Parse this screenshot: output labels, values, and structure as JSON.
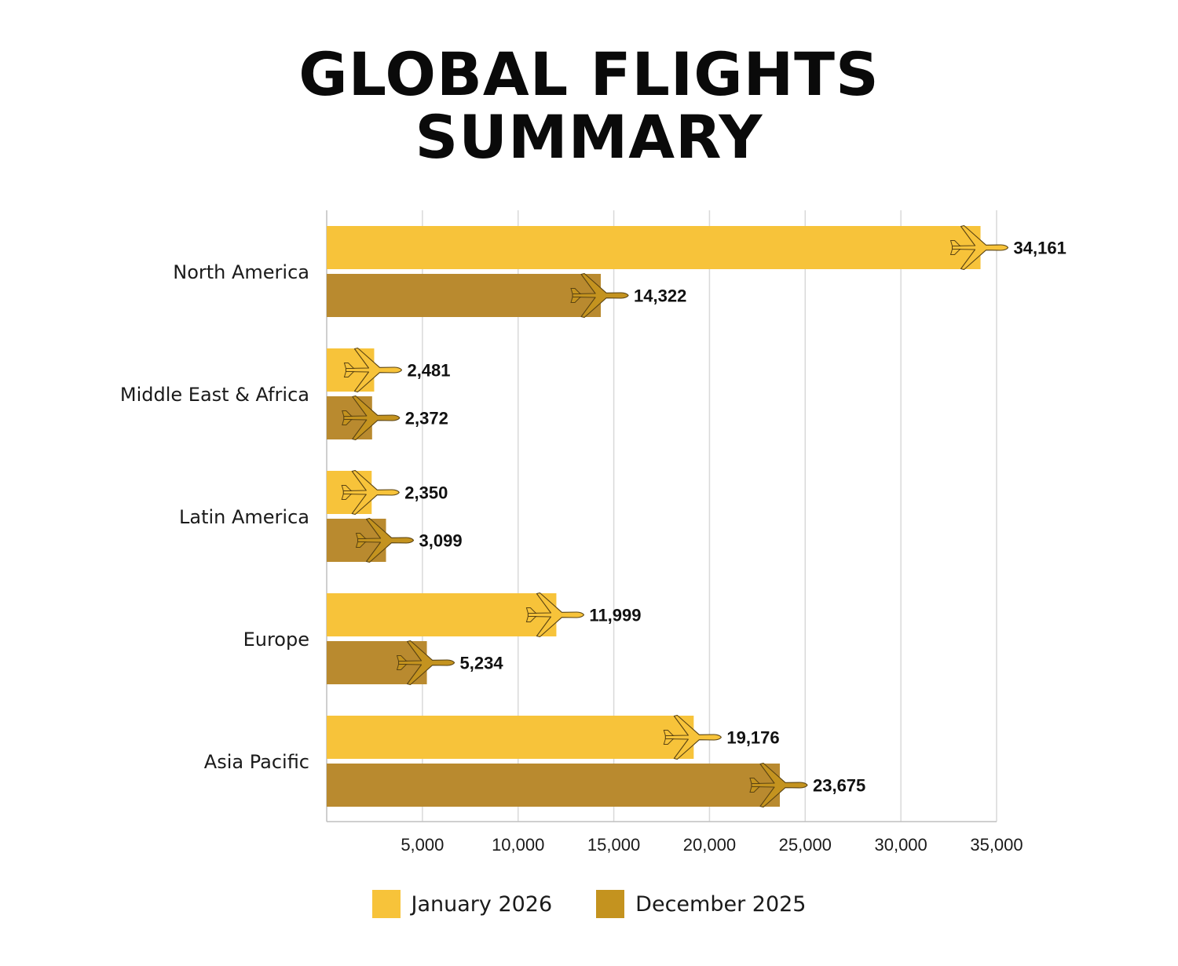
{
  "title_line1": "GLOBAL FLIGHTS",
  "title_line2": "SUMMARY",
  "colors": {
    "jan": "#f7c33a",
    "dec": "#b98a2f",
    "dec_swatch": "#c4931f",
    "grid": "#d9d9d9",
    "axis": "#bfbfbf"
  },
  "chart_data": {
    "type": "bar",
    "orientation": "horizontal",
    "title": "GLOBAL FLIGHTS SUMMARY",
    "categories": [
      "North America",
      "Middle East & Africa",
      "Latin America",
      "Europe",
      "Asia Pacific"
    ],
    "series": [
      {
        "name": "January 2026",
        "values": [
          34161,
          2481,
          2350,
          11999,
          19176
        ],
        "labels": [
          "34,161",
          "2,481",
          "2,350",
          "11,999",
          "19,176"
        ]
      },
      {
        "name": "December 2025",
        "values": [
          14322,
          2372,
          3099,
          5234,
          23675
        ],
        "labels": [
          "14,322",
          "2,372",
          "3,099",
          "5,234",
          "23,675"
        ]
      }
    ],
    "xlim": [
      0,
      35000
    ],
    "ticks": [
      5000,
      10000,
      15000,
      20000,
      25000,
      30000,
      35000
    ],
    "tick_labels": [
      "5,000",
      "10,000",
      "15,000",
      "20,000",
      "25,000",
      "30,000",
      "35,000"
    ],
    "grid": true,
    "marker_icon": "airplane-icon",
    "legend_position": "bottom"
  }
}
